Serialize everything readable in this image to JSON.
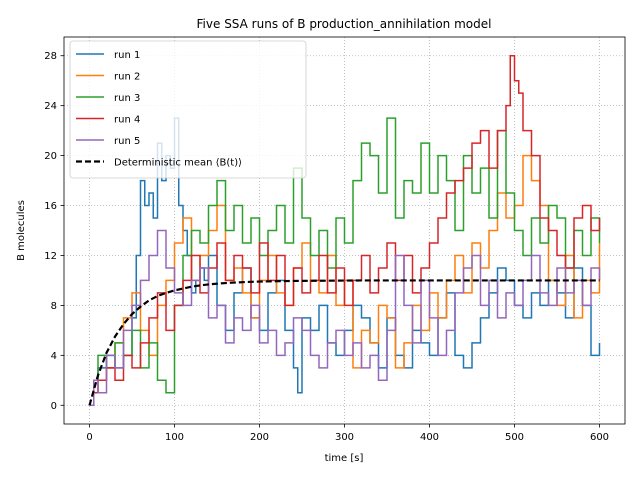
{
  "chart_data": {
    "type": "line",
    "title": "Five SSA runs of B production_annihilation model",
    "xlabel": "time [s]",
    "ylabel": "B molecules",
    "xlim": [
      -30,
      630
    ],
    "ylim": [
      -1.5,
      29.5
    ],
    "xticks": [
      0,
      100,
      200,
      300,
      400,
      500,
      600
    ],
    "yticks": [
      0,
      4,
      8,
      12,
      16,
      20,
      24,
      28
    ],
    "grid": true,
    "grid_style": "dotted",
    "legend_position": "upper-left",
    "series": [
      {
        "name": "run 1",
        "color": "#1f77b4",
        "step": true,
        "x": [
          0,
          5,
          10,
          20,
          30,
          40,
          50,
          55,
          60,
          65,
          70,
          75,
          80,
          85,
          90,
          95,
          100,
          105,
          110,
          115,
          120,
          125,
          130,
          135,
          140,
          150,
          160,
          170,
          180,
          190,
          200,
          210,
          220,
          230,
          240,
          245,
          250,
          260,
          270,
          280,
          290,
          300,
          310,
          320,
          330,
          340,
          350,
          360,
          370,
          380,
          390,
          400,
          410,
          420,
          430,
          440,
          450,
          460,
          470,
          480,
          490,
          500,
          510,
          520,
          530,
          540,
          550,
          560,
          570,
          580,
          590,
          600
        ],
        "y": [
          0,
          2,
          3,
          4,
          3,
          4,
          7,
          12,
          18,
          16,
          17,
          15,
          21,
          18,
          20,
          19,
          23,
          16,
          14,
          12,
          9,
          10,
          11,
          10,
          12,
          8,
          6,
          9,
          11,
          7,
          6,
          9,
          10,
          6,
          3,
          1,
          7,
          6,
          8,
          5,
          4,
          6,
          8,
          7,
          5,
          3,
          7,
          4,
          3,
          6,
          5,
          4,
          7,
          9,
          4,
          3,
          5,
          7,
          9,
          11,
          10,
          8,
          7,
          9,
          8,
          10,
          9,
          7,
          11,
          8,
          4,
          5
        ]
      },
      {
        "name": "run 2",
        "color": "#ff7f0e",
        "step": true,
        "x": [
          0,
          5,
          10,
          20,
          30,
          40,
          50,
          60,
          70,
          80,
          90,
          100,
          110,
          120,
          130,
          140,
          150,
          160,
          170,
          180,
          190,
          200,
          210,
          220,
          230,
          240,
          250,
          260,
          270,
          280,
          290,
          300,
          310,
          320,
          330,
          340,
          350,
          360,
          370,
          380,
          390,
          400,
          410,
          420,
          430,
          440,
          450,
          460,
          470,
          480,
          490,
          500,
          510,
          520,
          530,
          540,
          550,
          560,
          570,
          580,
          590,
          600
        ],
        "y": [
          0,
          1,
          2,
          3,
          5,
          7,
          9,
          6,
          4,
          8,
          10,
          13,
          15,
          10,
          12,
          14,
          16,
          10,
          11,
          9,
          7,
          10,
          12,
          9,
          8,
          11,
          13,
          10,
          9,
          12,
          8,
          10,
          3,
          6,
          5,
          8,
          7,
          3,
          5,
          8,
          6,
          9,
          7,
          10,
          12,
          9,
          13,
          11,
          14,
          17,
          15,
          16,
          20,
          18,
          16,
          10,
          8,
          12,
          7,
          10,
          9,
          13
        ]
      },
      {
        "name": "run 3",
        "color": "#2ca02c",
        "step": true,
        "x": [
          0,
          5,
          10,
          20,
          30,
          40,
          50,
          60,
          70,
          80,
          90,
          100,
          110,
          120,
          130,
          140,
          150,
          160,
          170,
          180,
          190,
          200,
          210,
          220,
          230,
          240,
          250,
          260,
          270,
          280,
          290,
          300,
          310,
          320,
          330,
          340,
          350,
          360,
          370,
          380,
          390,
          400,
          410,
          420,
          430,
          440,
          450,
          460,
          470,
          480,
          490,
          500,
          510,
          520,
          530,
          540,
          550,
          560,
          570,
          580,
          590,
          600
        ],
        "y": [
          0,
          2,
          4,
          3,
          5,
          4,
          6,
          3,
          5,
          2,
          1,
          8,
          12,
          14,
          13,
          16,
          18,
          14,
          16,
          13,
          15,
          12,
          14,
          16,
          13,
          19,
          15,
          12,
          14,
          11,
          15,
          13,
          18,
          21,
          20,
          17,
          23,
          15,
          18,
          17,
          21,
          17,
          20,
          18,
          14,
          20,
          17,
          19,
          15,
          22,
          17,
          14,
          12,
          15,
          13,
          16,
          15,
          11,
          14,
          12,
          15,
          13
        ]
      },
      {
        "name": "run 4",
        "color": "#d62728",
        "step": true,
        "x": [
          0,
          5,
          10,
          20,
          30,
          40,
          50,
          60,
          70,
          80,
          90,
          100,
          110,
          120,
          130,
          140,
          150,
          160,
          170,
          180,
          190,
          200,
          210,
          220,
          230,
          240,
          250,
          260,
          270,
          280,
          290,
          300,
          310,
          320,
          330,
          340,
          350,
          360,
          370,
          380,
          390,
          400,
          410,
          420,
          430,
          440,
          450,
          460,
          470,
          480,
          490,
          495,
          500,
          505,
          510,
          520,
          530,
          540,
          550,
          560,
          570,
          580,
          590,
          600
        ],
        "y": [
          0,
          1,
          2,
          3,
          2,
          4,
          3,
          5,
          7,
          9,
          6,
          8,
          10,
          12,
          9,
          11,
          13,
          10,
          12,
          11,
          9,
          13,
          10,
          12,
          8,
          11,
          9,
          10,
          12,
          9,
          11,
          8,
          10,
          12,
          9,
          11,
          13,
          10,
          12,
          9,
          11,
          13,
          15,
          17,
          18,
          19,
          21,
          22,
          19,
          22,
          24,
          28,
          26,
          25,
          22,
          20,
          15,
          14,
          12,
          11,
          15,
          16,
          14,
          15
        ]
      },
      {
        "name": "run 5",
        "color": "#9467bd",
        "step": true,
        "x": [
          0,
          5,
          10,
          20,
          30,
          40,
          50,
          60,
          70,
          80,
          90,
          100,
          110,
          120,
          130,
          140,
          150,
          160,
          170,
          180,
          190,
          200,
          210,
          220,
          230,
          240,
          250,
          260,
          270,
          280,
          290,
          300,
          310,
          320,
          330,
          340,
          350,
          360,
          370,
          380,
          390,
          400,
          410,
          420,
          430,
          440,
          450,
          460,
          470,
          480,
          490,
          500,
          510,
          520,
          530,
          540,
          550,
          560,
          570,
          580,
          590,
          600
        ],
        "y": [
          0,
          2,
          1,
          4,
          3,
          6,
          8,
          10,
          12,
          14,
          11,
          9,
          8,
          10,
          11,
          7,
          8,
          5,
          7,
          6,
          8,
          5,
          6,
          4,
          5,
          7,
          6,
          4,
          3,
          5,
          6,
          4,
          5,
          3,
          4,
          2,
          6,
          12,
          8,
          5,
          10,
          7,
          4,
          6,
          9,
          11,
          12,
          8,
          10,
          7,
          9,
          8,
          10,
          12,
          9,
          8,
          11,
          9,
          10,
          8,
          11,
          10
        ]
      },
      {
        "name": "Deterministic mean ⟨B(t)⟩",
        "color": "#000000",
        "dashed": true,
        "x": [
          0,
          10,
          20,
          30,
          40,
          50,
          60,
          70,
          80,
          90,
          100,
          110,
          120,
          130,
          140,
          150,
          160,
          170,
          180,
          190,
          200,
          220,
          240,
          260,
          280,
          300,
          320,
          340,
          360,
          380,
          400,
          450,
          500,
          550,
          600
        ],
        "y": [
          0,
          2.4,
          4.2,
          5.5,
          6.5,
          7.3,
          7.9,
          8.4,
          8.75,
          9.0,
          9.2,
          9.35,
          9.5,
          9.6,
          9.68,
          9.74,
          9.79,
          9.83,
          9.86,
          9.89,
          9.91,
          9.94,
          9.96,
          9.97,
          9.98,
          9.99,
          10,
          10,
          10,
          10,
          10,
          10,
          10,
          10,
          10
        ]
      }
    ]
  }
}
